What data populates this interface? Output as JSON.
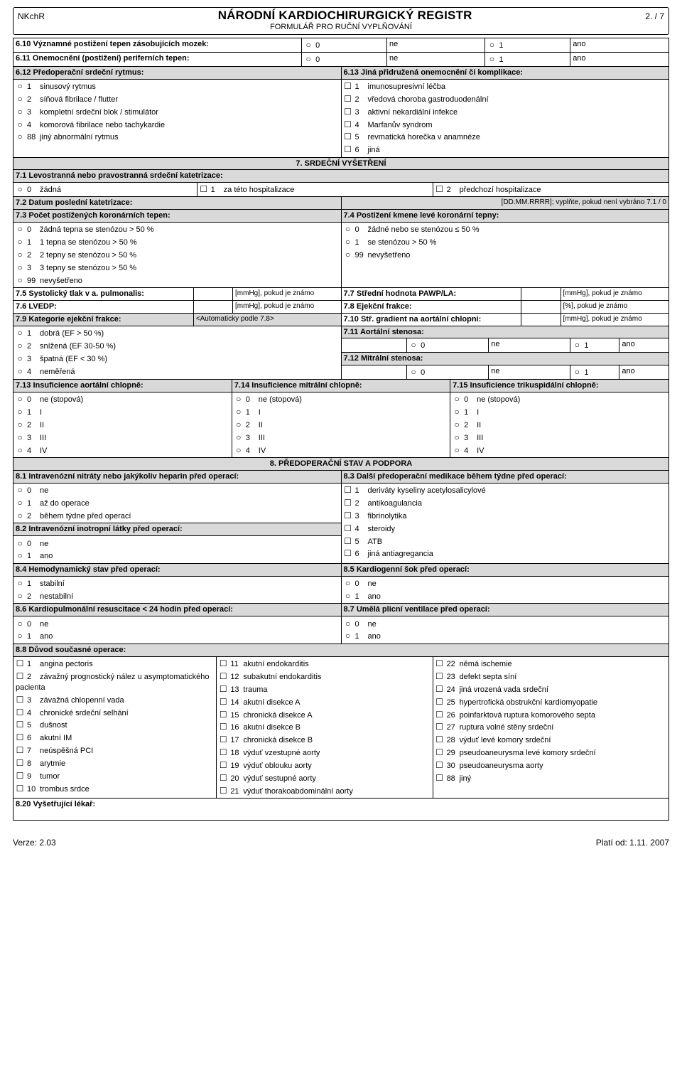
{
  "header": {
    "code": "NKchR",
    "title": "NÁRODNÍ KARDIOCHIRURGICKÝ REGISTR",
    "subtitle": "FORMULÁŘ PRO RUČNÍ VYPLŇOVÁNÍ",
    "page": "2. / 7"
  },
  "footer": {
    "left": "Verze: 2.03",
    "right": "Platí od: 1.11. 2007"
  },
  "s610": "6.10 Významné postižení tepen zásobujících mozek:",
  "s611": "6.11 Onemocnění (postižení) periferních tepen:",
  "s612": {
    "title": "6.12 Předoperační srdeční rytmus:",
    "opts": [
      "sinusový rytmus",
      "síňová fibrilace / flutter",
      "kompletní srdeční blok / stimulátor",
      "komorová fibrilace nebo tachykardie",
      "jiný abnormální rytmus"
    ],
    "codes": [
      "1",
      "2",
      "3",
      "4",
      "88"
    ]
  },
  "s613": {
    "title": "6.13 Jiná přidružená onemocnění či komplikace:",
    "opts": [
      "imunosupresivní léčba",
      "vředová choroba gastroduodenální",
      "aktivní nekardiální infekce",
      "Marfanův syndrom",
      "revmatická horečka v anamnéze",
      "jiná"
    ],
    "codes": [
      "1",
      "2",
      "3",
      "4",
      "5",
      "6"
    ]
  },
  "noYes": {
    "no": "ne",
    "yes": "ano",
    "c0": "0",
    "c1": "1"
  },
  "sec7": "7.   SRDEČNÍ VYŠETŘENÍ",
  "s71": {
    "title": "7.1 Levostranná nebo pravostranná srdeční katetrizace:",
    "a": "žádná",
    "b": "za této hospitalizace",
    "c": "předchozí hospitalizace",
    "ca": "0",
    "cb": "1",
    "cc": "2"
  },
  "s72": {
    "title": "7.2 Datum poslední katetrizace:",
    "hint": "[DD.MM.RRRR]; vyplňte, pokud není vybráno 7.1 / 0"
  },
  "s73": {
    "title": "7.3 Počet postižených koronárních tepen:",
    "opts": [
      "žádná tepna se stenózou > 50 %",
      "1 tepna se stenózou > 50 %",
      "2 tepny se stenózou > 50 %",
      "3 tepny se stenózou > 50 %",
      "nevyšetřeno"
    ],
    "codes": [
      "0",
      "1",
      "2",
      "3",
      "99"
    ]
  },
  "s74": {
    "title": "7.4 Postižení kmene levé koronární tepny:",
    "opts": [
      "žádné nebo se stenózou ≤ 50 %",
      "se stenózou > 50 %",
      "nevyšetřeno"
    ],
    "codes": [
      "0",
      "1",
      "99"
    ]
  },
  "s75": {
    "title": "7.5 Systolický tlak v a. pulmonalis:",
    "hint": "[mmHg], pokud je známo"
  },
  "s76": {
    "title": "7.6 LVEDP:",
    "hint": "[mmHg], pokud je známo"
  },
  "s77": {
    "title": "7.7 Střední hodnota PAWP/LA:",
    "hint": "[mmHg], pokud je známo"
  },
  "s78": {
    "title": "7.8 Ejekční frakce:",
    "hint": "[%], pokud je známo"
  },
  "s79": {
    "title": "7.9 Kategorie ejekční frakce:",
    "auto": "<Automaticky podle 7.8>",
    "opts": [
      "dobrá (EF > 50 %)",
      "snížená (EF 30-50 %)",
      "špatná (EF < 30 %)",
      "neměřená"
    ],
    "codes": [
      "1",
      "2",
      "3",
      "4"
    ]
  },
  "s710": {
    "title": "7.10 Stř. gradient na aortální chlopni:",
    "hint": "[mmHg], pokud je známo"
  },
  "s711": "7.11 Aortální stenosa:",
  "s712": "7.12 Mitrální stenosa:",
  "s713": "7.13 Insuficience aortální chlopně:",
  "s714": "7.14 Insuficience mitrální chlopně:",
  "s715": "7.15 Insuficience trikuspidální chlopně:",
  "insuf": {
    "opts": [
      "ne (stopová)",
      "I",
      "II",
      "III",
      "IV"
    ],
    "codes": [
      "0",
      "1",
      "2",
      "3",
      "4"
    ]
  },
  "sec8": "8.   PŘEDOPERAČNÍ STAV A PODPORA",
  "s81": {
    "title": "8.1 Intravenózní nitráty nebo jakýkoliv heparin před operací:",
    "opts": [
      "ne",
      "až do operace",
      "během týdne před operací"
    ],
    "codes": [
      "0",
      "1",
      "2"
    ]
  },
  "s82": {
    "title": "8.2 Intravenózní inotropní látky před operací:"
  },
  "s83": {
    "title": "8.3 Další předoperační medikace během týdne před operací:",
    "opts": [
      "deriváty kyseliny acetylosalicylové",
      "antikoagulancia",
      "fibrinolytika",
      "steroidy",
      "ATB",
      "jiná antiagregancia"
    ],
    "codes": [
      "1",
      "2",
      "3",
      "4",
      "5",
      "6"
    ]
  },
  "s84": {
    "title": "8.4 Hemodynamický stav před operací:",
    "opts": [
      "stabilní",
      "nestabilní"
    ],
    "codes": [
      "1",
      "2"
    ]
  },
  "s85": "8.5 Kardiogenní šok před operací:",
  "s86": "8.6 Kardiopulmonální resuscitace < 24 hodin před operací:",
  "s87": "8.7 Umělá plicní ventilace před operací:",
  "s88": {
    "title": "8.8 Důvod současné operace:",
    "col1": {
      "codes": [
        "1",
        "2",
        "3",
        "4",
        "5",
        "6",
        "7",
        "8",
        "9",
        "10"
      ],
      "opts": [
        "angina pectoris",
        "závažný prognostický nález u asymptomatického pacienta",
        "závažná chlopenní vada",
        "chronické srdeční selhání",
        "dušnost",
        "akutní IM",
        "neúspěšná PCI",
        "arytmie",
        "tumor",
        "trombus srdce"
      ]
    },
    "col2": {
      "codes": [
        "11",
        "12",
        "13",
        "14",
        "15",
        "16",
        "17",
        "18",
        "19",
        "20",
        "21"
      ],
      "opts": [
        "akutní endokarditis",
        "subakutní endokarditis",
        "trauma",
        "akutní disekce A",
        "chronická disekce A",
        "akutní disekce B",
        "chronická disekce B",
        "výduť vzestupné aorty",
        "výduť oblouku aorty",
        "výduť sestupné aorty",
        "výduť thorakoabdominální aorty"
      ]
    },
    "col3": {
      "codes": [
        "22",
        "23",
        "24",
        "25",
        "26",
        "27",
        "28",
        "29",
        "30",
        "88"
      ],
      "opts": [
        "němá ischemie",
        "defekt septa síní",
        "jiná vrozená vada srdeční",
        "hypertrofická obstrukční kardiomyopatie",
        "poinfarktová ruptura komorového septa",
        "ruptura volné stěny srdeční",
        "výduť levé komory srdeční",
        "pseudoaneurysma levé komory srdeční",
        "pseudoaneurysma aorty",
        "jiný"
      ]
    }
  },
  "s820": "8.20 Vyšetřující lékař:"
}
